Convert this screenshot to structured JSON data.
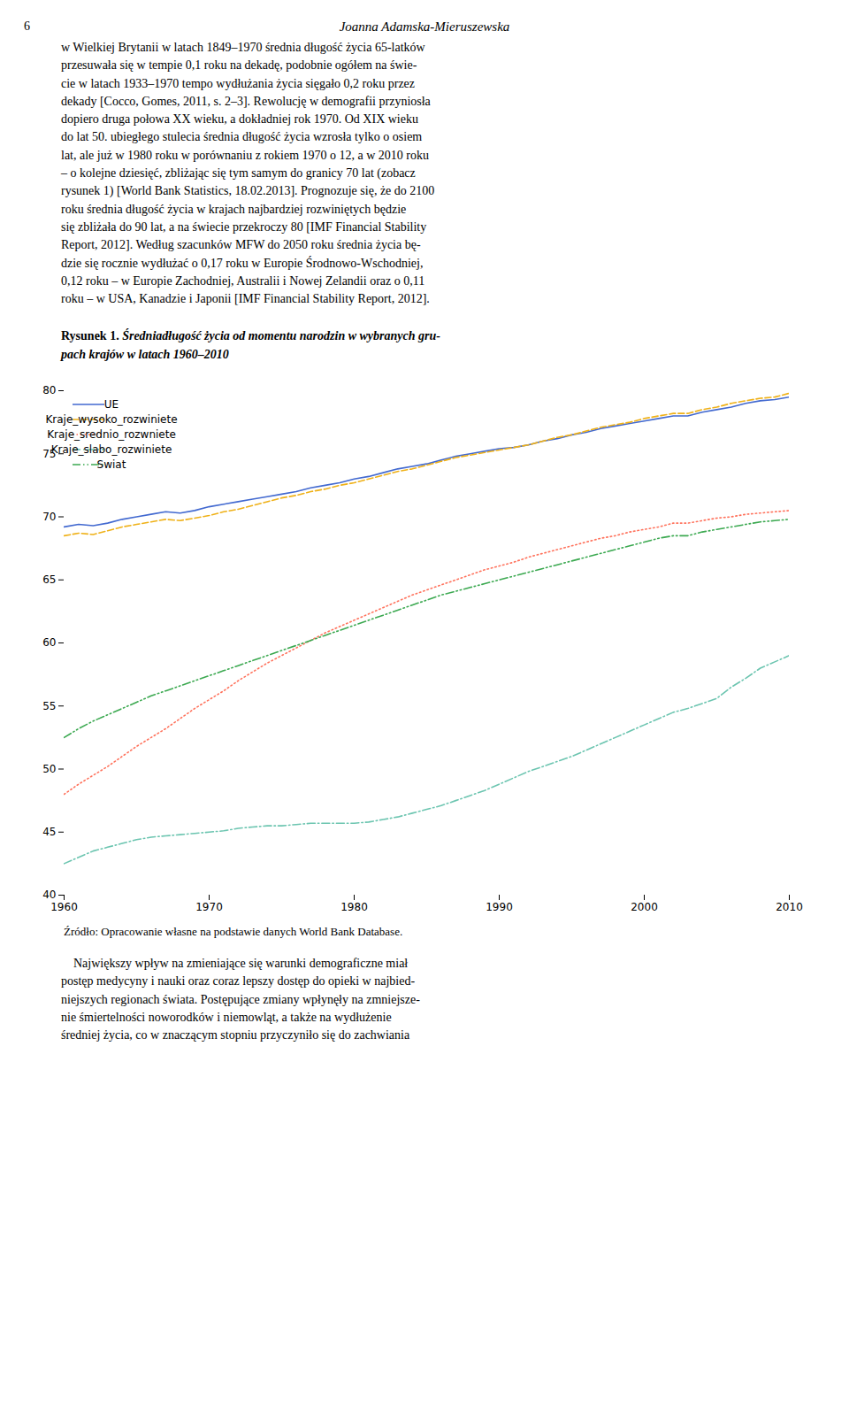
{
  "page_text": {
    "header_left": "6",
    "header_center": "Joanna Adamska-Mieruszewska",
    "body": "w Wielkiej Brytanii w latach 1849–1970 średnia długość życia 65-latków\nprzesuwała się w tempie 0,1 roku na dekadę, podobnie ogółem na świe-\ncie w latach 1933–1970 tempo wydłużania życia sięgało 0,2 roku przez\ndekady [Cocco, Gomes, 2011, s. 2–3]. Rewolucję w demografii przyniosła\ndopiero druga połowa XX wieku, a dokładniej rok 1970. Od XIX wieku\ndo lat 50. ubiegłego stulecia średnia długość życia wzrosła tylko o osiem\nlat, ale już w 1980 roku w porównaniu z rokiem 1970 o 12, a w 2010 roku\n– o kolejne dziesięć, zbliżając się tym samym do granicy 70 lat (zobacz\nrysunek 1) [World Bank Statistics, 18.02.2013]. Prognozuje się, że do 2100\nroku średnia długość życia w krajach najbardziej rozwiniętych będzie\nsię zbliżała do 90 lat, a na świecie przekroczy 80 [IMF Financial Stability\nReport, 2012]. Według szacunków MFW do 2050 roku średnia życia bę-\ndzie się rocznie wydłużać o 0,17 roku w Europie Środnowo-Wschodniej,\n0,12 roku – w Europie Zachodniej, Australii i Nowej Zelandii oraz o 0,11\nroku – w USA, Kanadzie i Japonii [IMF Financial Stability Report, 2012].",
    "body_after": "\tNajwiększy wpływ na zmieniające się warunki demograficzne miał\npostęp medycyny i nauki oraz coraz lepszy dostęp do opieki w najbied-\nniejszych regionach świata. Postępujące zmiany wpłynęły na zmniejsze-\nnie śmiertelności noworodków i niemowląt, a także na wydłużenie\nśredniej życia, co w znaczącym stopniu przyczyniło się do zachwiania"
  },
  "chart_data": {
    "type": "line",
    "title": "Rysunek 1.",
    "subtitle": " Średniadługość życia od momentu narodzin w wybranych gru-\npach krajów w latach 1960–2010",
    "source": "Źródło: Opracowanie własne na podstawie danych World Bank Database.",
    "x": [
      1960,
      1961,
      1962,
      1963,
      1964,
      1965,
      1966,
      1967,
      1968,
      1969,
      1970,
      1971,
      1972,
      1973,
      1974,
      1975,
      1976,
      1977,
      1978,
      1979,
      1980,
      1981,
      1982,
      1983,
      1984,
      1985,
      1986,
      1987,
      1988,
      1989,
      1990,
      1991,
      1992,
      1993,
      1994,
      1995,
      1996,
      1997,
      1998,
      1999,
      2000,
      2001,
      2002,
      2003,
      2004,
      2005,
      2006,
      2007,
      2008,
      2009,
      2010
    ],
    "series": [
      {
        "name": "UE",
        "line_style": "solid",
        "values": [
          69.2,
          69.4,
          69.3,
          69.5,
          69.8,
          70.0,
          70.2,
          70.4,
          70.3,
          70.5,
          70.8,
          71.0,
          71.2,
          71.4,
          71.6,
          71.8,
          72.0,
          72.3,
          72.5,
          72.7,
          73.0,
          73.2,
          73.5,
          73.8,
          74.0,
          74.2,
          74.5,
          74.8,
          75.0,
          75.2,
          75.4,
          75.5,
          75.7,
          76.0,
          76.2,
          76.5,
          76.7,
          77.0,
          77.2,
          77.4,
          77.6,
          77.8,
          78.0,
          78.0,
          78.3,
          78.5,
          78.7,
          79.0,
          79.2,
          79.3,
          79.5
        ]
      },
      {
        "name": "Kraje_wysoko_rozwiniete",
        "line_style": "dashed",
        "values": [
          68.5,
          68.7,
          68.6,
          68.9,
          69.2,
          69.4,
          69.6,
          69.8,
          69.7,
          69.9,
          70.1,
          70.4,
          70.6,
          70.9,
          71.2,
          71.5,
          71.7,
          72.0,
          72.2,
          72.5,
          72.7,
          73.0,
          73.3,
          73.6,
          73.8,
          74.1,
          74.4,
          74.7,
          74.9,
          75.1,
          75.3,
          75.5,
          75.7,
          76.0,
          76.3,
          76.5,
          76.8,
          77.1,
          77.3,
          77.5,
          77.8,
          78.0,
          78.2,
          78.2,
          78.5,
          78.7,
          79.0,
          79.2,
          79.4,
          79.5,
          79.8
        ]
      },
      {
        "name": "Kraje_srednio_rozwniete",
        "line_style": "dotted",
        "values": [
          48.0,
          48.8,
          49.5,
          50.2,
          51.0,
          51.8,
          52.5,
          53.2,
          54.0,
          54.8,
          55.5,
          56.2,
          57.0,
          57.7,
          58.4,
          59.0,
          59.6,
          60.2,
          60.8,
          61.3,
          61.8,
          62.3,
          62.8,
          63.3,
          63.8,
          64.2,
          64.6,
          65.0,
          65.4,
          65.8,
          66.1,
          66.4,
          66.8,
          67.1,
          67.4,
          67.7,
          68.0,
          68.3,
          68.5,
          68.8,
          69.0,
          69.2,
          69.5,
          69.5,
          69.7,
          69.9,
          70.0,
          70.2,
          70.3,
          70.4,
          70.5
        ]
      },
      {
        "name": "Kraje_slabo_rozwiniete",
        "line_style": "dashdot",
        "values": [
          42.5,
          43.0,
          43.5,
          43.8,
          44.1,
          44.4,
          44.6,
          44.7,
          44.8,
          44.9,
          45.0,
          45.1,
          45.3,
          45.4,
          45.5,
          45.5,
          45.6,
          45.7,
          45.7,
          45.7,
          45.7,
          45.8,
          46.0,
          46.2,
          46.5,
          46.8,
          47.1,
          47.5,
          47.9,
          48.3,
          48.8,
          49.3,
          49.8,
          50.2,
          50.6,
          51.0,
          51.5,
          52.0,
          52.5,
          53.0,
          53.5,
          54.0,
          54.5,
          54.8,
          55.2,
          55.6,
          56.5,
          57.2,
          58.0,
          58.5,
          59.0
        ]
      },
      {
        "name": "Swiat",
        "line_style": "dashdotdot",
        "values": [
          52.5,
          53.2,
          53.8,
          54.3,
          54.8,
          55.3,
          55.8,
          56.2,
          56.6,
          57.0,
          57.4,
          57.8,
          58.2,
          58.6,
          59.0,
          59.4,
          59.8,
          60.2,
          60.6,
          61.0,
          61.4,
          61.8,
          62.2,
          62.6,
          63.0,
          63.4,
          63.8,
          64.1,
          64.4,
          64.7,
          65.0,
          65.3,
          65.6,
          65.9,
          66.2,
          66.5,
          66.8,
          67.1,
          67.4,
          67.7,
          68.0,
          68.3,
          68.5,
          68.5,
          68.8,
          69.0,
          69.2,
          69.4,
          69.6,
          69.7,
          69.8
        ]
      }
    ],
    "xlim": [
      1960,
      2010
    ],
    "ylim": [
      40,
      80
    ],
    "xticks": [
      1960,
      1970,
      1980,
      1990,
      2000,
      2010
    ],
    "yticks": [
      40,
      45,
      50,
      55,
      60,
      65,
      70,
      75,
      80
    ],
    "grid": false,
    "legend": "upper left"
  }
}
